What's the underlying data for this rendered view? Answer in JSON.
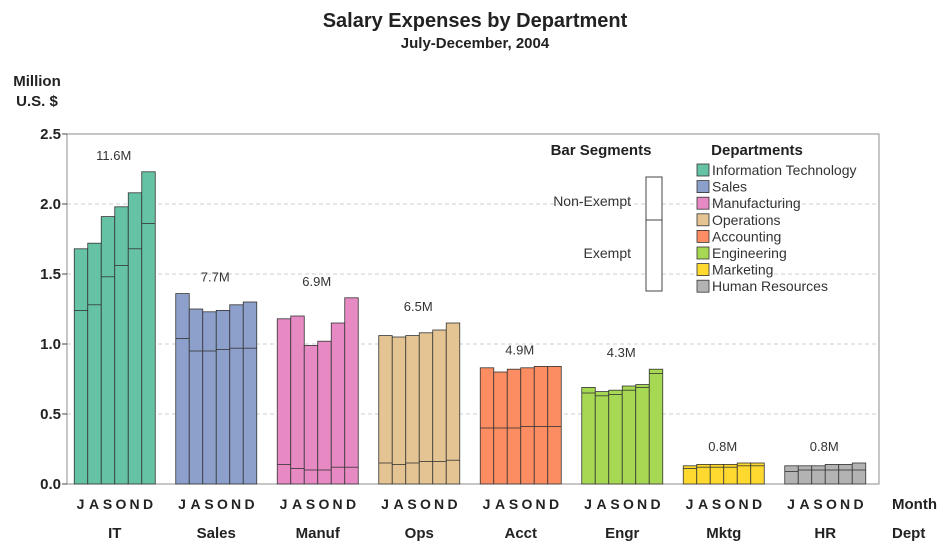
{
  "chart_data": {
    "type": "bar",
    "stacked": true,
    "title": "Salary Expenses by Department",
    "subtitle": "July-December, 2004",
    "ylabel_line1": "Million",
    "ylabel_line2": "U.S. $",
    "ylim": [
      0,
      2.5
    ],
    "yticks": [
      "0.0",
      "0.5",
      "1.0",
      "1.5",
      "2.0",
      "2.5"
    ],
    "grid": true,
    "month_axis_label": "Month",
    "dept_axis_label": "Dept",
    "month_letters": [
      "J",
      "A",
      "S",
      "O",
      "N",
      "D"
    ],
    "departments": [
      {
        "abbr": "IT",
        "name": "Information Technology",
        "color": "#66c2a5",
        "total_label": "11.6M",
        "exempt": [
          1.24,
          1.28,
          1.48,
          1.56,
          1.68,
          1.86
        ],
        "total": [
          1.68,
          1.72,
          1.91,
          1.98,
          2.08,
          2.23
        ]
      },
      {
        "abbr": "Sales",
        "name": "Sales",
        "color": "#8da0cb",
        "total_label": "7.7M",
        "exempt": [
          1.04,
          0.95,
          0.95,
          0.96,
          0.97,
          0.97
        ],
        "total": [
          1.36,
          1.25,
          1.23,
          1.24,
          1.28,
          1.3
        ]
      },
      {
        "abbr": "Manuf",
        "name": "Manufacturing",
        "color": "#e78ac3",
        "total_label": "6.9M",
        "exempt": [
          0.14,
          0.11,
          0.1,
          0.1,
          0.12,
          0.12
        ],
        "total": [
          1.18,
          1.2,
          0.99,
          1.02,
          1.15,
          1.33
        ]
      },
      {
        "abbr": "Ops",
        "name": "Operations",
        "color": "#e5c494",
        "total_label": "6.5M",
        "exempt": [
          0.15,
          0.14,
          0.15,
          0.16,
          0.16,
          0.17
        ],
        "total": [
          1.06,
          1.05,
          1.06,
          1.08,
          1.1,
          1.15
        ]
      },
      {
        "abbr": "Acct",
        "name": "Accounting",
        "color": "#fc8d62",
        "total_label": "4.9M",
        "exempt": [
          0.4,
          0.4,
          0.4,
          0.41,
          0.41,
          0.41
        ],
        "total": [
          0.83,
          0.8,
          0.82,
          0.83,
          0.84,
          0.84
        ]
      },
      {
        "abbr": "Engr",
        "name": "Engineering",
        "color": "#a6d854",
        "total_label": "4.3M",
        "exempt": [
          0.65,
          0.63,
          0.64,
          0.67,
          0.69,
          0.79
        ],
        "total": [
          0.69,
          0.66,
          0.67,
          0.7,
          0.71,
          0.82
        ]
      },
      {
        "abbr": "Mktg",
        "name": "Marketing",
        "color": "#ffd92f",
        "total_label": "0.8M",
        "exempt": [
          0.11,
          0.12,
          0.12,
          0.12,
          0.13,
          0.13
        ],
        "total": [
          0.13,
          0.14,
          0.14,
          0.14,
          0.15,
          0.15
        ]
      },
      {
        "abbr": "HR",
        "name": "Human Resources",
        "color": "#b3b3b3",
        "total_label": "0.8M",
        "exempt": [
          0.09,
          0.1,
          0.1,
          0.1,
          0.1,
          0.1
        ],
        "total": [
          0.13,
          0.13,
          0.13,
          0.14,
          0.14,
          0.15
        ]
      }
    ],
    "legend_segments_title": "Bar Segments",
    "legend_segments": [
      "Non-Exempt",
      "Exempt"
    ],
    "legend_departments_title": "Departments",
    "legend_placement": "top-right"
  }
}
